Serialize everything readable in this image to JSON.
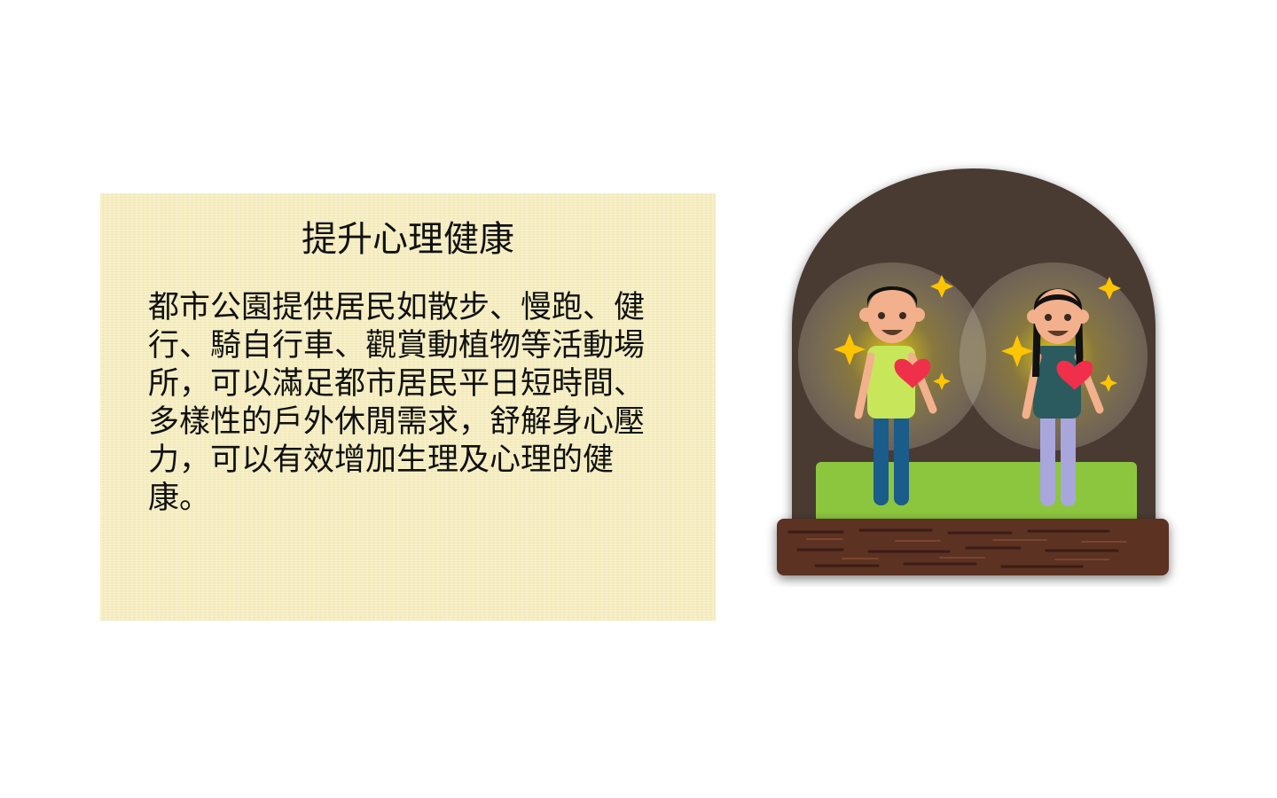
{
  "card": {
    "title": "提升心理健康",
    "body": "都市公園提供居民如散步、慢跑、健行、騎自行車、觀賞動植物等活動場所，可以滿足都市居民平日短時間、多樣性的戶外休閒需求，舒解身心壓力，可以有效增加生理及心理的健康。"
  },
  "illustration": {
    "people": [
      "man-with-heart",
      "woman-with-heart"
    ],
    "icons": [
      "sparkle-icon",
      "heart-icon"
    ]
  },
  "colors": {
    "card_bg": "#f6eec0",
    "arch": "#4a3a32",
    "grass": "#8cc63f",
    "base": "#5c3020",
    "heart": "#f0304a",
    "sparkle": "#ffc400"
  }
}
